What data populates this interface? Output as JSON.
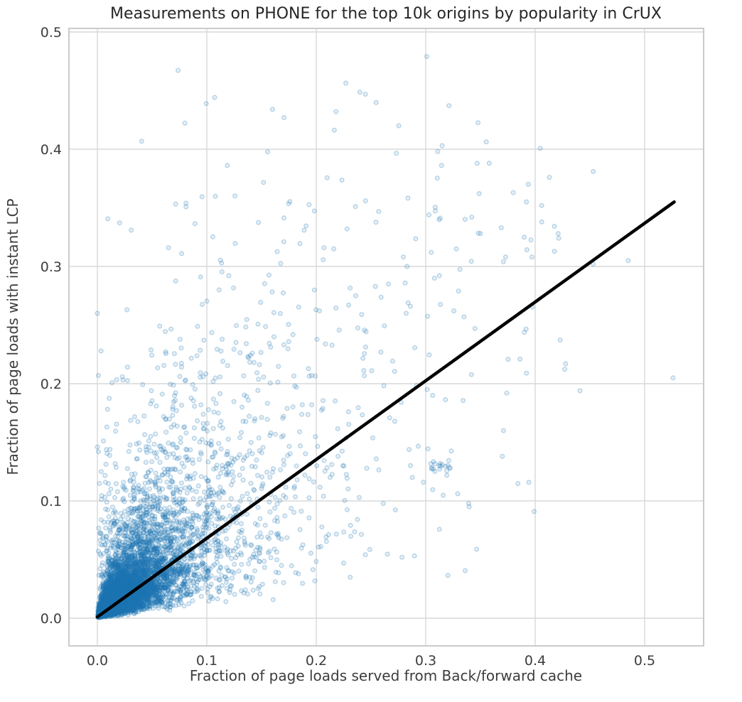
{
  "chart_data": {
    "type": "scatter",
    "title": "Measurements on PHONE for the top 10k origins by popularity in CrUX",
    "xlabel": "Fraction of page loads served from Back/forward cache",
    "ylabel": "Fraction of page loads with instant LCP",
    "xlim": [
      -0.026,
      0.554
    ],
    "ylim": [
      -0.0236,
      0.504
    ],
    "grid": true,
    "legend": "none",
    "xticks": {
      "values": [
        0.0,
        0.1,
        0.2,
        0.3,
        0.4,
        0.5
      ],
      "labels": [
        "0.0",
        "0.1",
        "0.2",
        "0.3",
        "0.4",
        "0.5"
      ]
    },
    "yticks": {
      "values": [
        0.0,
        0.1,
        0.2,
        0.3,
        0.4,
        0.5
      ],
      "labels": [
        "0.0",
        "0.1",
        "0.2",
        "0.3",
        "0.4",
        "0.5"
      ]
    },
    "style": {
      "background": "#ffffff",
      "grid_color": "#d9d9d9",
      "spine_color": "#cbcbcb",
      "text_color": "#3d3d3d",
      "title_color": "#262626",
      "marker_color": "#1f77b4",
      "marker_fill_opacity": 0.12,
      "marker_stroke_opacity": 0.3,
      "marker_radius": 2.9,
      "marker_stroke_width": 1.2,
      "line_color": "#000000",
      "line_width": 4.5
    },
    "regression_line": {
      "x1": 0.0,
      "y1": 0.001,
      "x2": 0.527,
      "y2": 0.355
    },
    "n_points_depicted": 10000,
    "distribution": {
      "comment": "dense mass at origin fanning out along slope ~0.674 with lognormal spread",
      "seed": 42,
      "n": 8500,
      "x_log_median": 0.021,
      "x_log_sigma": 1.08,
      "slope": 0.674,
      "mult_log_sigma": 0.72,
      "base_noise": 0.0045,
      "extra_prob": 0.05,
      "extra_log_median": 0.03,
      "extra_log_sigma": 0.9
    },
    "clusters": [
      {
        "center": [
          0.312,
          0.128
        ],
        "count": 14,
        "spread": 0.005
      },
      {
        "center": [
          0.323,
          0.131
        ],
        "count": 5,
        "spread": 0.003
      }
    ],
    "notable_points": [
      [
        0.301,
        0.479
      ],
      [
        0.16,
        0.434
      ],
      [
        0.315,
        0.403
      ],
      [
        0.311,
        0.398
      ],
      [
        0.347,
        0.388
      ],
      [
        0.358,
        0.388
      ],
      [
        0.453,
        0.381
      ],
      [
        0.413,
        0.376
      ],
      [
        0.38,
        0.363
      ],
      [
        0.406,
        0.352
      ],
      [
        0.406,
        0.338
      ],
      [
        0.369,
        0.333
      ],
      [
        0.39,
        0.325
      ],
      [
        0.421,
        0.328
      ],
      [
        0.373,
        0.308
      ],
      [
        0.371,
        0.304
      ],
      [
        0.397,
        0.308
      ],
      [
        0.485,
        0.305
      ],
      [
        0.453,
        0.302
      ],
      [
        0.392,
        0.209
      ],
      [
        0.526,
        0.205
      ],
      [
        0.441,
        0.194
      ],
      [
        0.374,
        0.192
      ],
      [
        0.37,
        0.138
      ],
      [
        0.399,
        0.091
      ],
      [
        0.0,
        0.26
      ],
      [
        0.001,
        0.207
      ],
      [
        0.0,
        0.146
      ],
      [
        0.001,
        0.142
      ],
      [
        0.002,
        0.115
      ],
      [
        0.081,
        0.354
      ],
      [
        0.065,
        0.316
      ],
      [
        0.077,
        0.311
      ],
      [
        0.027,
        0.263
      ],
      [
        0.207,
        0.316
      ],
      [
        0.216,
        0.315
      ],
      [
        0.245,
        0.356
      ],
      [
        0.303,
        0.344
      ],
      [
        0.266,
        0.285
      ],
      [
        0.254,
        0.283
      ],
      [
        0.236,
        0.275
      ],
      [
        0.286,
        0.266
      ],
      [
        0.305,
        0.312
      ],
      [
        0.308,
        0.29
      ],
      [
        0.33,
        0.279
      ],
      [
        0.335,
        0.257
      ],
      [
        0.345,
        0.247
      ],
      [
        0.35,
        0.328
      ],
      [
        0.328,
        0.315
      ],
      [
        0.342,
        0.342
      ]
    ]
  }
}
